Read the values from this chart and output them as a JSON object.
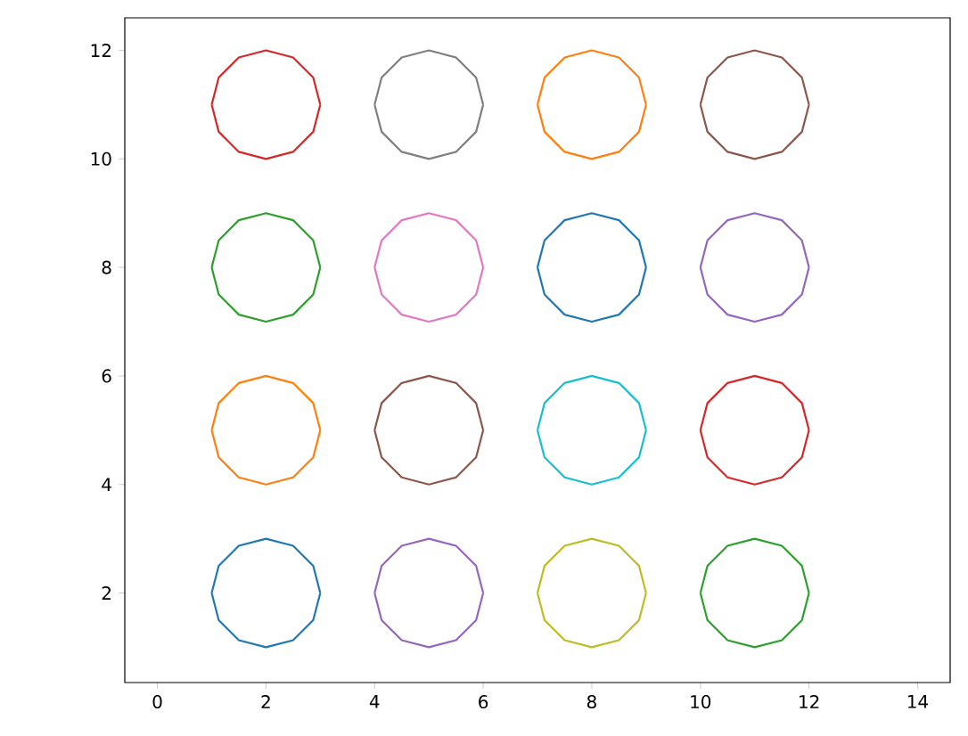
{
  "chart_data": {
    "type": "line",
    "xlim": [
      -0.6,
      14.6
    ],
    "ylim": [
      0.35,
      12.6
    ],
    "xticks": [
      0,
      2,
      4,
      6,
      8,
      10,
      12,
      14
    ],
    "yticks": [
      2,
      4,
      6,
      8,
      10,
      12
    ],
    "grid": false,
    "marker": "none",
    "line_style": "solid",
    "series": [
      {
        "color": "#1f77b4",
        "x": [
          1,
          1.13,
          1.5,
          2,
          2.5,
          2.87,
          3
        ],
        "values": [
          2,
          2.5,
          2.87,
          3,
          2.87,
          2.5,
          2
        ]
      },
      {
        "color": "#1f77b4",
        "x": [
          1,
          1.13,
          1.5,
          2,
          2.5,
          2.87,
          3
        ],
        "values": [
          2,
          1.5,
          1.13,
          1,
          1.13,
          1.5,
          2
        ]
      },
      {
        "color": "#ff7f0e",
        "x": [
          1,
          1.13,
          1.5,
          2,
          2.5,
          2.87,
          3
        ],
        "values": [
          5,
          5.5,
          5.87,
          6,
          5.87,
          5.5,
          5
        ]
      },
      {
        "color": "#ff7f0e",
        "x": [
          1,
          1.13,
          1.5,
          2,
          2.5,
          2.87,
          3
        ],
        "values": [
          5,
          4.5,
          4.13,
          4,
          4.13,
          4.5,
          5
        ]
      },
      {
        "color": "#2ca02c",
        "x": [
          1,
          1.13,
          1.5,
          2,
          2.5,
          2.87,
          3
        ],
        "values": [
          8,
          8.5,
          8.87,
          9,
          8.87,
          8.5,
          8
        ]
      },
      {
        "color": "#2ca02c",
        "x": [
          1,
          1.13,
          1.5,
          2,
          2.5,
          2.87,
          3
        ],
        "values": [
          8,
          7.5,
          7.13,
          7,
          7.13,
          7.5,
          8
        ]
      },
      {
        "color": "#d62728",
        "x": [
          1,
          1.13,
          1.5,
          2,
          2.5,
          2.87,
          3
        ],
        "values": [
          11,
          11.5,
          11.87,
          12,
          11.87,
          11.5,
          11
        ]
      },
      {
        "color": "#d62728",
        "x": [
          1,
          1.13,
          1.5,
          2,
          2.5,
          2.87,
          3
        ],
        "values": [
          11,
          10.5,
          10.13,
          10,
          10.13,
          10.5,
          11
        ]
      },
      {
        "color": "#9467bd",
        "x": [
          4,
          4.13,
          4.5,
          5,
          5.5,
          5.87,
          6
        ],
        "values": [
          2,
          2.5,
          2.87,
          3,
          2.87,
          2.5,
          2
        ]
      },
      {
        "color": "#9467bd",
        "x": [
          4,
          4.13,
          4.5,
          5,
          5.5,
          5.87,
          6
        ],
        "values": [
          2,
          1.5,
          1.13,
          1,
          1.13,
          1.5,
          2
        ]
      },
      {
        "color": "#8c564b",
        "x": [
          4,
          4.13,
          4.5,
          5,
          5.5,
          5.87,
          6
        ],
        "values": [
          5,
          5.5,
          5.87,
          6,
          5.87,
          5.5,
          5
        ]
      },
      {
        "color": "#8c564b",
        "x": [
          4,
          4.13,
          4.5,
          5,
          5.5,
          5.87,
          6
        ],
        "values": [
          5,
          4.5,
          4.13,
          4,
          4.13,
          4.5,
          5
        ]
      },
      {
        "color": "#e377c2",
        "x": [
          4,
          4.13,
          4.5,
          5,
          5.5,
          5.87,
          6
        ],
        "values": [
          8,
          8.5,
          8.87,
          9,
          8.87,
          8.5,
          8
        ]
      },
      {
        "color": "#e377c2",
        "x": [
          4,
          4.13,
          4.5,
          5,
          5.5,
          5.87,
          6
        ],
        "values": [
          8,
          7.5,
          7.13,
          7,
          7.13,
          7.5,
          8
        ]
      },
      {
        "color": "#7f7f7f",
        "x": [
          4,
          4.13,
          4.5,
          5,
          5.5,
          5.87,
          6
        ],
        "values": [
          11,
          11.5,
          11.87,
          12,
          11.87,
          11.5,
          11
        ]
      },
      {
        "color": "#7f7f7f",
        "x": [
          4,
          4.13,
          4.5,
          5,
          5.5,
          5.87,
          6
        ],
        "values": [
          11,
          10.5,
          10.13,
          10,
          10.13,
          10.5,
          11
        ]
      },
      {
        "color": "#bcbd22",
        "x": [
          7,
          7.13,
          7.5,
          8,
          8.5,
          8.87,
          9
        ],
        "values": [
          2,
          2.5,
          2.87,
          3,
          2.87,
          2.5,
          2
        ]
      },
      {
        "color": "#bcbd22",
        "x": [
          7,
          7.13,
          7.5,
          8,
          8.5,
          8.87,
          9
        ],
        "values": [
          2,
          1.5,
          1.13,
          1,
          1.13,
          1.5,
          2
        ]
      },
      {
        "color": "#17becf",
        "x": [
          7,
          7.13,
          7.5,
          8,
          8.5,
          8.87,
          9
        ],
        "values": [
          5,
          5.5,
          5.87,
          6,
          5.87,
          5.5,
          5
        ]
      },
      {
        "color": "#17becf",
        "x": [
          7,
          7.13,
          7.5,
          8,
          8.5,
          8.87,
          9
        ],
        "values": [
          5,
          4.5,
          4.13,
          4,
          4.13,
          4.5,
          5
        ]
      },
      {
        "color": "#1f77b4",
        "x": [
          7,
          7.13,
          7.5,
          8,
          8.5,
          8.87,
          9
        ],
        "values": [
          8,
          8.5,
          8.87,
          9,
          8.87,
          8.5,
          8
        ]
      },
      {
        "color": "#1f77b4",
        "x": [
          7,
          7.13,
          7.5,
          8,
          8.5,
          8.87,
          9
        ],
        "values": [
          8,
          7.5,
          7.13,
          7,
          7.13,
          7.5,
          8
        ]
      },
      {
        "color": "#ff7f0e",
        "x": [
          7,
          7.13,
          7.5,
          8,
          8.5,
          8.87,
          9
        ],
        "values": [
          11,
          11.5,
          11.87,
          12,
          11.87,
          11.5,
          11
        ]
      },
      {
        "color": "#ff7f0e",
        "x": [
          7,
          7.13,
          7.5,
          8,
          8.5,
          8.87,
          9
        ],
        "values": [
          11,
          10.5,
          10.13,
          10,
          10.13,
          10.5,
          11
        ]
      },
      {
        "color": "#2ca02c",
        "x": [
          10,
          10.13,
          10.5,
          11,
          11.5,
          11.87,
          12
        ],
        "values": [
          2,
          2.5,
          2.87,
          3,
          2.87,
          2.5,
          2
        ]
      },
      {
        "color": "#2ca02c",
        "x": [
          10,
          10.13,
          10.5,
          11,
          11.5,
          11.87,
          12
        ],
        "values": [
          2,
          1.5,
          1.13,
          1,
          1.13,
          1.5,
          2
        ]
      },
      {
        "color": "#d62728",
        "x": [
          10,
          10.13,
          10.5,
          11,
          11.5,
          11.87,
          12
        ],
        "values": [
          5,
          5.5,
          5.87,
          6,
          5.87,
          5.5,
          5
        ]
      },
      {
        "color": "#d62728",
        "x": [
          10,
          10.13,
          10.5,
          11,
          11.5,
          11.87,
          12
        ],
        "values": [
          5,
          4.5,
          4.13,
          4,
          4.13,
          4.5,
          5
        ]
      },
      {
        "color": "#9467bd",
        "x": [
          10,
          10.13,
          10.5,
          11,
          11.5,
          11.87,
          12
        ],
        "values": [
          8,
          8.5,
          8.87,
          9,
          8.87,
          8.5,
          8
        ]
      },
      {
        "color": "#9467bd",
        "x": [
          10,
          10.13,
          10.5,
          11,
          11.5,
          11.87,
          12
        ],
        "values": [
          8,
          7.5,
          7.13,
          7,
          7.13,
          7.5,
          8
        ]
      },
      {
        "color": "#8c564b",
        "x": [
          10,
          10.13,
          10.5,
          11,
          11.5,
          11.87,
          12
        ],
        "values": [
          11,
          11.5,
          11.87,
          12,
          11.87,
          11.5,
          11
        ]
      },
      {
        "color": "#8c564b",
        "x": [
          10,
          10.13,
          10.5,
          11,
          11.5,
          11.87,
          12
        ],
        "values": [
          11,
          10.5,
          10.13,
          10,
          10.13,
          10.5,
          11
        ]
      }
    ]
  }
}
